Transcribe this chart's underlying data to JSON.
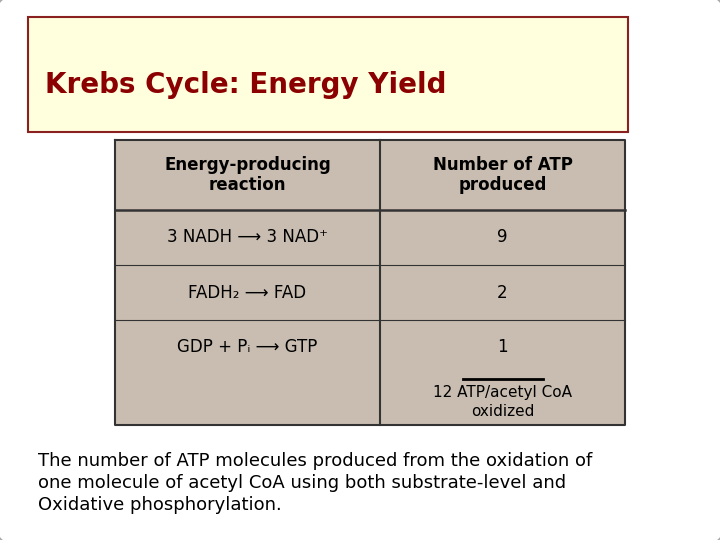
{
  "title": "Krebs Cycle: Energy Yield",
  "title_color": "#8B0000",
  "title_bg": "#FFFFDD",
  "slide_bg": "#FFFFFF",
  "table_bg": "#C8BDB0",
  "table_border": "#333333",
  "col1_header": "Energy-producing\nreaction",
  "col2_header": "Number of ATP\nproduced",
  "rows": [
    {
      "reaction": "3 NADH ⟶ 3 NAD⁺",
      "atp": "9"
    },
    {
      "reaction": "FADH₂ ⟶ FAD",
      "atp": "2"
    },
    {
      "reaction": "GDP + Pᵢ ⟶ GTP",
      "atp": "1"
    }
  ],
  "total_label": "12 ATP/acetyl CoA\noxidized",
  "caption_lines": [
    "The number of ATP molecules produced from the oxidation of",
    "one molecule of acetyl CoA using both substrate-level and",
    "Oxidative phosphorylation."
  ],
  "caption_color": "#000000",
  "header_fontsize": 12,
  "row_fontsize": 12,
  "caption_fontsize": 13,
  "title_fontsize": 20,
  "slide_border_color": "#AAAAAA",
  "title_border_color": "#8B2020"
}
